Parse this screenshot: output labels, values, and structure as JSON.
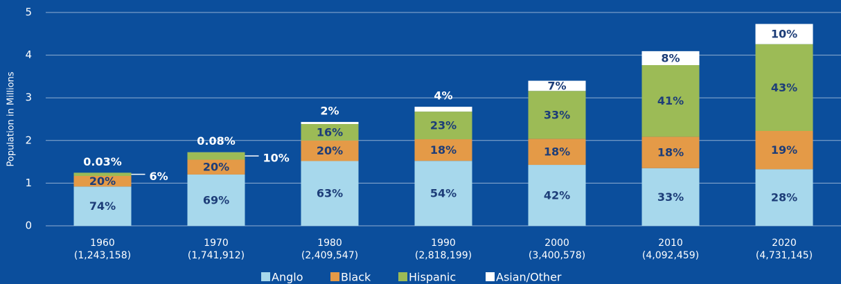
{
  "chart_data": {
    "type": "stacked_bar",
    "y_label": "Population in Millions",
    "categories": [
      "1960",
      "1970",
      "1980",
      "1990",
      "2000",
      "2010",
      "2020"
    ],
    "category_totals": [
      "(1,243,158)",
      "(1,741,912)",
      "(2,409,547)",
      "(2,818,199)",
      "(3,400,578)",
      "(4,092,459)",
      "(4,731,145)"
    ],
    "series": [
      {
        "name": "Anglo",
        "color": "#a7d8ec",
        "values": [
          0.92,
          1.202,
          1.518,
          1.522,
          1.428,
          1.351,
          1.325
        ],
        "value_labels": [
          "74%",
          "69%",
          "63%",
          "54%",
          "42%",
          "33%",
          "28%"
        ]
      },
      {
        "name": "Black",
        "color": "#e49a47",
        "values": [
          0.249,
          0.348,
          0.482,
          0.507,
          0.612,
          0.737,
          0.899
        ],
        "value_labels": [
          "20%",
          "20%",
          "20%",
          "18%",
          "18%",
          "18%",
          "19%"
        ]
      },
      {
        "name": "Hispanic",
        "color": "#9cbb56",
        "values": [
          0.075,
          0.174,
          0.386,
          0.648,
          1.122,
          1.678,
          2.034
        ],
        "value_labels": [
          "6%",
          "10%",
          "16%",
          "23%",
          "33%",
          "41%",
          "43%"
        ]
      },
      {
        "name": "Asian/Other",
        "color": "#ffffff",
        "values": [
          0.0004,
          0.0014,
          0.048,
          0.113,
          0.238,
          0.327,
          0.473
        ],
        "value_labels": [
          "0.03%",
          "0.08%",
          "2%",
          "4%",
          "7%",
          "8%",
          "10%"
        ]
      }
    ],
    "ylim": [
      0,
      5
    ],
    "yticks": [
      0,
      1,
      2,
      3,
      4,
      5
    ],
    "grid": true
  }
}
